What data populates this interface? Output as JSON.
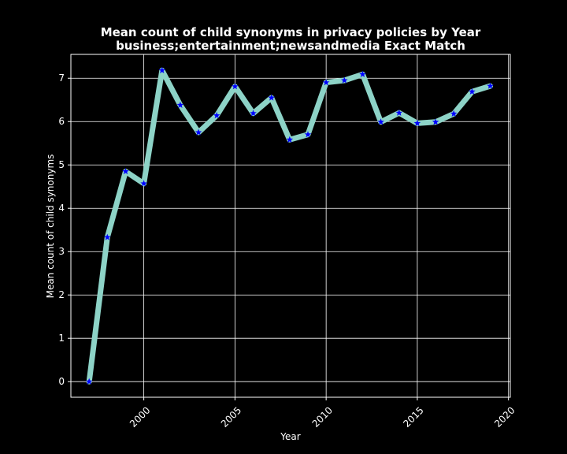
{
  "chart_data": {
    "type": "line",
    "title": "Mean count of child synonyms in privacy policies by Year",
    "subtitle": "business;entertainment;newsandmedia Exact Match",
    "xlabel": "Year",
    "ylabel": "Mean count of child synonyms",
    "xlim": [
      1996.0,
      2020.1
    ],
    "ylim": [
      -0.36,
      7.55
    ],
    "xticks": [
      2000,
      2005,
      2010,
      2015,
      2020
    ],
    "xtick_labels": [
      "2000",
      "2005",
      "2010",
      "2015",
      "2020"
    ],
    "yticks": [
      0,
      1,
      2,
      3,
      4,
      5,
      6,
      7
    ],
    "ytick_labels": [
      "0",
      "1",
      "2",
      "3",
      "4",
      "5",
      "6",
      "7"
    ],
    "grid": true,
    "line_color": "#8dd3c7",
    "marker": "star",
    "marker_color": "#0000ff",
    "background": "#000000",
    "text_color": "#ffffff",
    "series": [
      {
        "x": [
          1997,
          1998,
          1999,
          2000,
          2001,
          2002,
          2003,
          2004,
          2005,
          2006,
          2007,
          2008,
          2009,
          2010,
          2011,
          2012,
          2013,
          2014,
          2015,
          2016,
          2017,
          2018,
          2019
        ],
        "values": [
          0.0,
          3.33,
          4.85,
          4.57,
          7.18,
          6.38,
          5.75,
          6.14,
          6.81,
          6.19,
          6.55,
          5.58,
          5.7,
          6.9,
          6.95,
          7.09,
          5.99,
          6.2,
          5.96,
          5.99,
          6.18,
          6.69,
          6.82
        ]
      }
    ]
  }
}
